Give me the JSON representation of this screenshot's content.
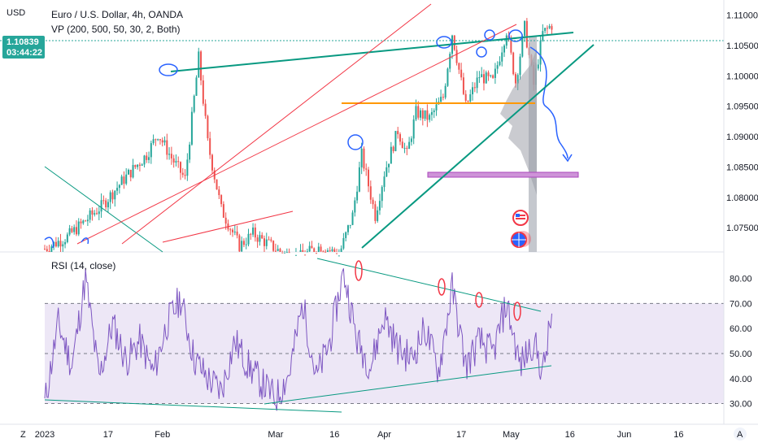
{
  "header": {
    "currency": "USD",
    "title": "Euro / U.S. Dollar, 4h, OANDA",
    "indicator": "VP (200, 500, 50, 30, 2, Both)"
  },
  "price_tag": {
    "price": "1.10839",
    "countdown": "03:44:22",
    "color": "#26a69a"
  },
  "rsi": {
    "label": "RSI (14, close)",
    "line_color": "#7e57c2",
    "band_color": "#ede7f6",
    "upper": 70,
    "middle": 50,
    "lower": 30
  },
  "bottom_bar": {
    "left_icon": "z-icon",
    "right_icon": "a-icon",
    "left_text": "Z",
    "right_text": "A"
  },
  "colors": {
    "up": "#26a69a",
    "down": "#ef5350",
    "trend_green": "#089981",
    "trend_red": "#f23645",
    "orange": "#ff9800",
    "purple": "#ce93d8",
    "blue_note": "#2962ff",
    "volume_profile": "#b2b5be"
  },
  "chart_data": [
    {
      "type": "candlestick",
      "title": "Euro / U.S. Dollar, 4h, OANDA",
      "ylabel": "USD",
      "ylim": [
        1.071,
        1.1125
      ],
      "y_ticks": [
        "1.11000",
        "1.10500",
        "1.10000",
        "1.09500",
        "1.09000",
        "1.08500",
        "1.08000",
        "1.07500"
      ],
      "x_tick_labels": [
        "2023",
        "17",
        "Feb",
        "Mar",
        "16",
        "Apr",
        "17",
        "May",
        "16",
        "Jun",
        "16"
      ],
      "close_path": [
        [
          0,
          1.0715
        ],
        [
          10,
          1.0735
        ],
        [
          25,
          1.0785
        ],
        [
          35,
          1.083
        ],
        [
          45,
          1.087
        ],
        [
          50,
          1.0905
        ],
        [
          56,
          1.0865
        ],
        [
          62,
          1.083
        ],
        [
          68,
          1.103
        ],
        [
          72,
          1.089
        ],
        [
          78,
          1.078
        ],
        [
          86,
          1.072
        ],
        [
          92,
          1.074
        ],
        [
          104,
          1.071
        ],
        [
          112,
          1.07
        ],
        [
          122,
          1.072
        ],
        [
          130,
          1.0705
        ],
        [
          136,
          1.077
        ],
        [
          140,
          1.087
        ],
        [
          146,
          1.077
        ],
        [
          150,
          1.084
        ],
        [
          156,
          1.091
        ],
        [
          160,
          1.087
        ],
        [
          164,
          1.094
        ],
        [
          170,
          1.093
        ],
        [
          176,
          1.0965
        ],
        [
          180,
          1.107
        ],
        [
          186,
          1.095
        ],
        [
          192,
          1.1
        ],
        [
          198,
          1.099
        ],
        [
          204,
          1.1075
        ],
        [
          208,
          1.099
        ],
        [
          212,
          1.108
        ],
        [
          216,
          1.0985
        ],
        [
          220,
          1.107
        ],
        [
          224,
          1.1084
        ]
      ],
      "horizontal_levels": [
        1.097
      ],
      "zones": [
        {
          "from": 1.0833,
          "to": 1.0845
        }
      ],
      "notes": "Volume profile on right; hand-drawn trend lines and circles; blue arrow projecting down"
    },
    {
      "type": "line",
      "title": "RSI (14, close)",
      "ylim": [
        24,
        88
      ],
      "y_ticks": [
        80,
        70,
        60,
        50,
        40,
        30
      ],
      "bands": [
        70,
        50,
        30
      ],
      "x": [
        0,
        6,
        12,
        18,
        24,
        30,
        36,
        42,
        48,
        54,
        60,
        66,
        72,
        78,
        84,
        90,
        96,
        102,
        108,
        114,
        120,
        126,
        132,
        138,
        144,
        150,
        156,
        162,
        168,
        174,
        180,
        186,
        192,
        198,
        204,
        210,
        216,
        220,
        224
      ],
      "values": [
        30,
        62,
        45,
        80,
        40,
        62,
        47,
        55,
        42,
        62,
        72,
        48,
        40,
        35,
        55,
        45,
        38,
        32,
        42,
        70,
        40,
        55,
        83,
        55,
        45,
        65,
        52,
        48,
        60,
        43,
        76,
        45,
        55,
        50,
        70,
        45,
        55,
        42,
        65
      ]
    }
  ]
}
